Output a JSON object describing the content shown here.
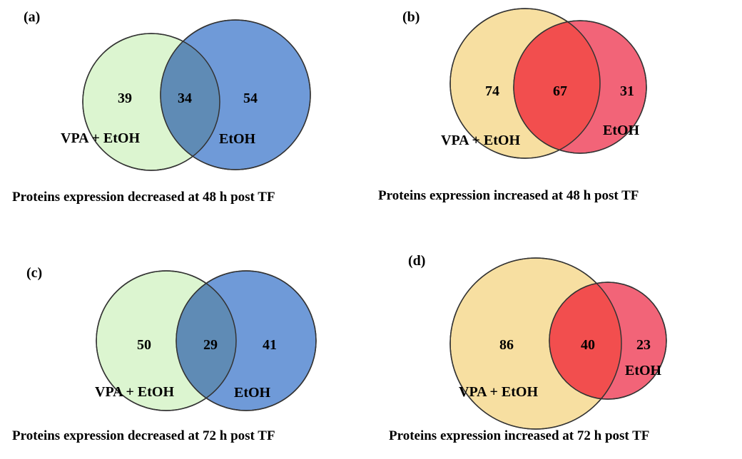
{
  "panels": [
    {
      "label": "(a)",
      "left_count": "39",
      "overlap_count": "34",
      "right_count": "54",
      "left_set": "VPA + EtOH",
      "right_set": "EtOH",
      "caption": "Proteins expression decreased at 48 h post TF",
      "colors": {
        "left": "#dcf5d0",
        "right": "#6f9ad8",
        "overlap": "#5f8bb5"
      }
    },
    {
      "label": "(b)",
      "left_count": "74",
      "overlap_count": "67",
      "right_count": "31",
      "left_set": "VPA + EtOH",
      "right_set": "EtOH",
      "caption": "Proteins expression increased at 48 h post TF",
      "colors": {
        "left": "#f7dfa1",
        "right": "#f26478",
        "overlap": "#f24e4e"
      }
    },
    {
      "label": "(c)",
      "left_count": "50",
      "overlap_count": "29",
      "right_count": "41",
      "left_set": "VPA + EtOH",
      "right_set": "EtOH",
      "caption": "Proteins expression decreased at 72 h post TF",
      "colors": {
        "left": "#dcf5d0",
        "right": "#6f9ad8",
        "overlap": "#5f8bb5"
      }
    },
    {
      "label": "(d)",
      "left_count": "86",
      "overlap_count": "40",
      "right_count": "23",
      "left_set": "VPA + EtOH",
      "right_set": "EtOH",
      "caption": "Proteins expression increased at 72 h post TF",
      "colors": {
        "left": "#f7dfa1",
        "right": "#f26478",
        "overlap": "#f24e4e"
      }
    }
  ]
}
